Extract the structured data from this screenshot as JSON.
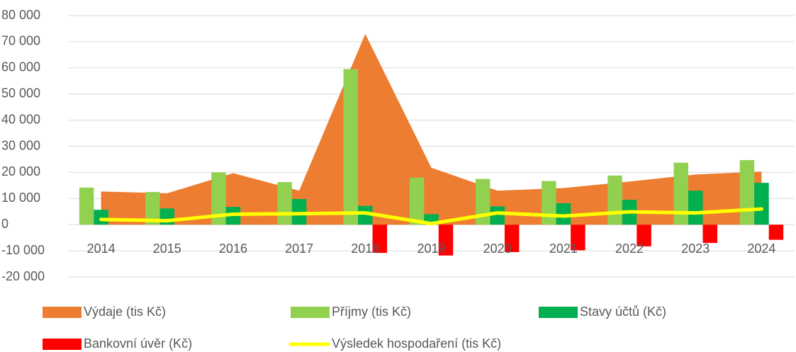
{
  "chart_data": {
    "type": "combo",
    "categories": [
      "2014",
      "2015",
      "2016",
      "2017",
      "2018",
      "2019",
      "2020",
      "2021",
      "2022",
      "2023",
      "2024"
    ],
    "series": [
      {
        "name": "Výdaje (tis Kč)",
        "kind": "area",
        "color": "#ED7D31",
        "values": [
          12700,
          12000,
          19700,
          13000,
          73000,
          21800,
          13000,
          14000,
          16500,
          19200,
          20300
        ]
      },
      {
        "name": "Příjmy (tis Kč)",
        "kind": "bar",
        "color": "#92D050",
        "values": [
          14200,
          12500,
          20000,
          16300,
          59500,
          18000,
          17500,
          16700,
          18800,
          23700,
          24700
        ]
      },
      {
        "name": "Stavy účtů (Kč)",
        "kind": "bar",
        "color": "#00B050",
        "values": [
          5700,
          6200,
          6800,
          9800,
          7200,
          4000,
          7000,
          8200,
          9500,
          13000,
          16000
        ]
      },
      {
        "name": "Bankovní úvěr (Kč)",
        "kind": "bar",
        "color": "#FF0000",
        "values": [
          null,
          null,
          null,
          null,
          -10800,
          -11800,
          -10500,
          -9800,
          -8300,
          -7000,
          -5800
        ]
      },
      {
        "name": "Výsledek hospodaření (tis Kč)",
        "kind": "line",
        "color": "#FFFF00",
        "values": [
          2000,
          1500,
          4000,
          4200,
          4500,
          400,
          4500,
          3300,
          4900,
          4500,
          6000
        ]
      }
    ],
    "ylim": [
      -20000,
      80000
    ],
    "yticks": [
      {
        "value": -20000,
        "label": "-20 000"
      },
      {
        "value": -10000,
        "label": "-10 000"
      },
      0,
      {
        "value": 10000,
        "label": "10 000"
      },
      {
        "value": 20000,
        "label": "20 000"
      },
      {
        "value": 30000,
        "label": "30 000"
      },
      {
        "value": 40000,
        "label": "40 000"
      },
      {
        "value": 50000,
        "label": "50 000"
      },
      {
        "value": 60000,
        "label": "60 000"
      },
      {
        "value": 70000,
        "label": "70 000"
      },
      {
        "value": 80000,
        "label": "80 000"
      }
    ],
    "grid": true,
    "legend": "bottom"
  }
}
